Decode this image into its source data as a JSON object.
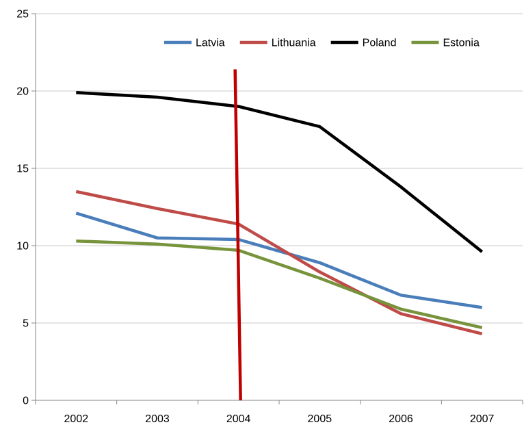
{
  "chart_data": {
    "type": "line",
    "title": "",
    "xlabel": "",
    "ylabel": "",
    "categories": [
      "2002",
      "2003",
      "2004",
      "2005",
      "2006",
      "2007"
    ],
    "ylim": [
      0,
      25
    ],
    "yticks": [
      0,
      5,
      10,
      15,
      20,
      25
    ],
    "grid": "horizontal",
    "legend": "top-right",
    "series": [
      {
        "name": "Latvia",
        "color": "#4a7ebb",
        "values": [
          12.1,
          10.5,
          10.4,
          8.9,
          6.8,
          6.0
        ]
      },
      {
        "name": "Lithuania",
        "color": "#be4b48",
        "values": [
          13.5,
          12.4,
          11.4,
          8.3,
          5.6,
          4.3
        ]
      },
      {
        "name": "Poland",
        "color": "#000000",
        "values": [
          19.9,
          19.6,
          19.0,
          17.7,
          13.8,
          9.6
        ]
      },
      {
        "name": "Estonia",
        "color": "#77933c",
        "values": [
          10.3,
          10.1,
          9.7,
          7.9,
          5.9,
          4.7
        ]
      }
    ],
    "annotations": [
      {
        "type": "marker-line",
        "color": "#c00000",
        "x": "2004",
        "y_top": 21.4,
        "y_bottom": 0
      }
    ]
  }
}
